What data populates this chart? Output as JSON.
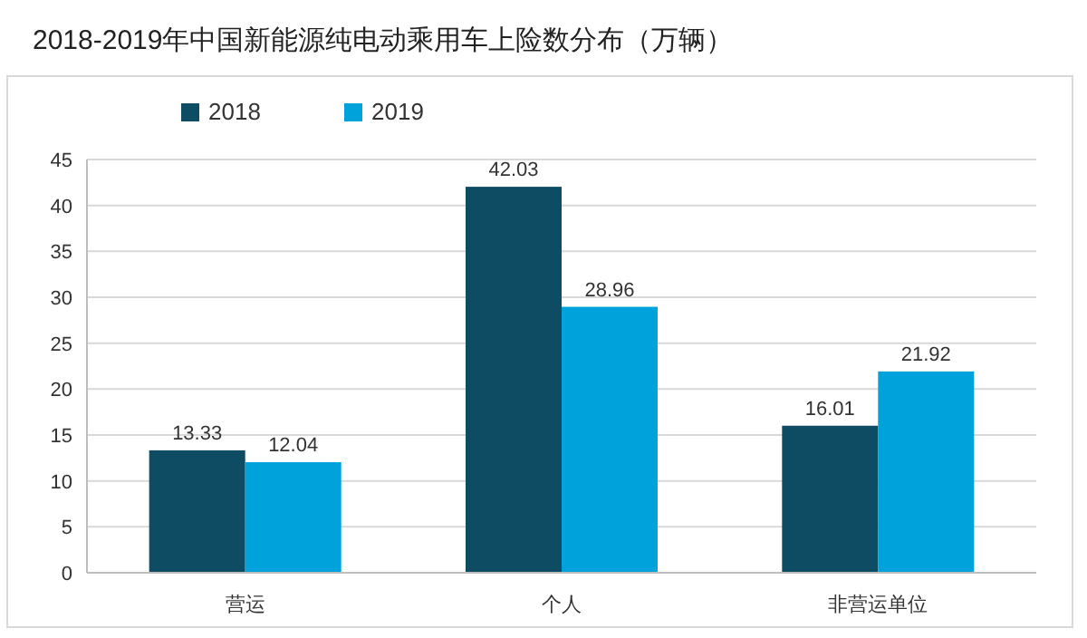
{
  "chart_data": {
    "type": "bar",
    "title": "2018-2019年中国新能源纯电动乘用车上险数分布（万辆）",
    "categories": [
      "营运",
      "个人",
      "非营运单位"
    ],
    "series": [
      {
        "name": "2018",
        "color": "#0e4c63",
        "values": [
          13.33,
          42.03,
          16.01
        ]
      },
      {
        "name": "2019",
        "color": "#00a2dc",
        "values": [
          12.04,
          28.96,
          21.92
        ]
      }
    ],
    "ylim": [
      0,
      45
    ],
    "yticks": [
      0,
      5,
      10,
      15,
      20,
      25,
      30,
      35,
      40,
      45
    ],
    "grid": "y",
    "legend": "top",
    "data_labels": true
  }
}
